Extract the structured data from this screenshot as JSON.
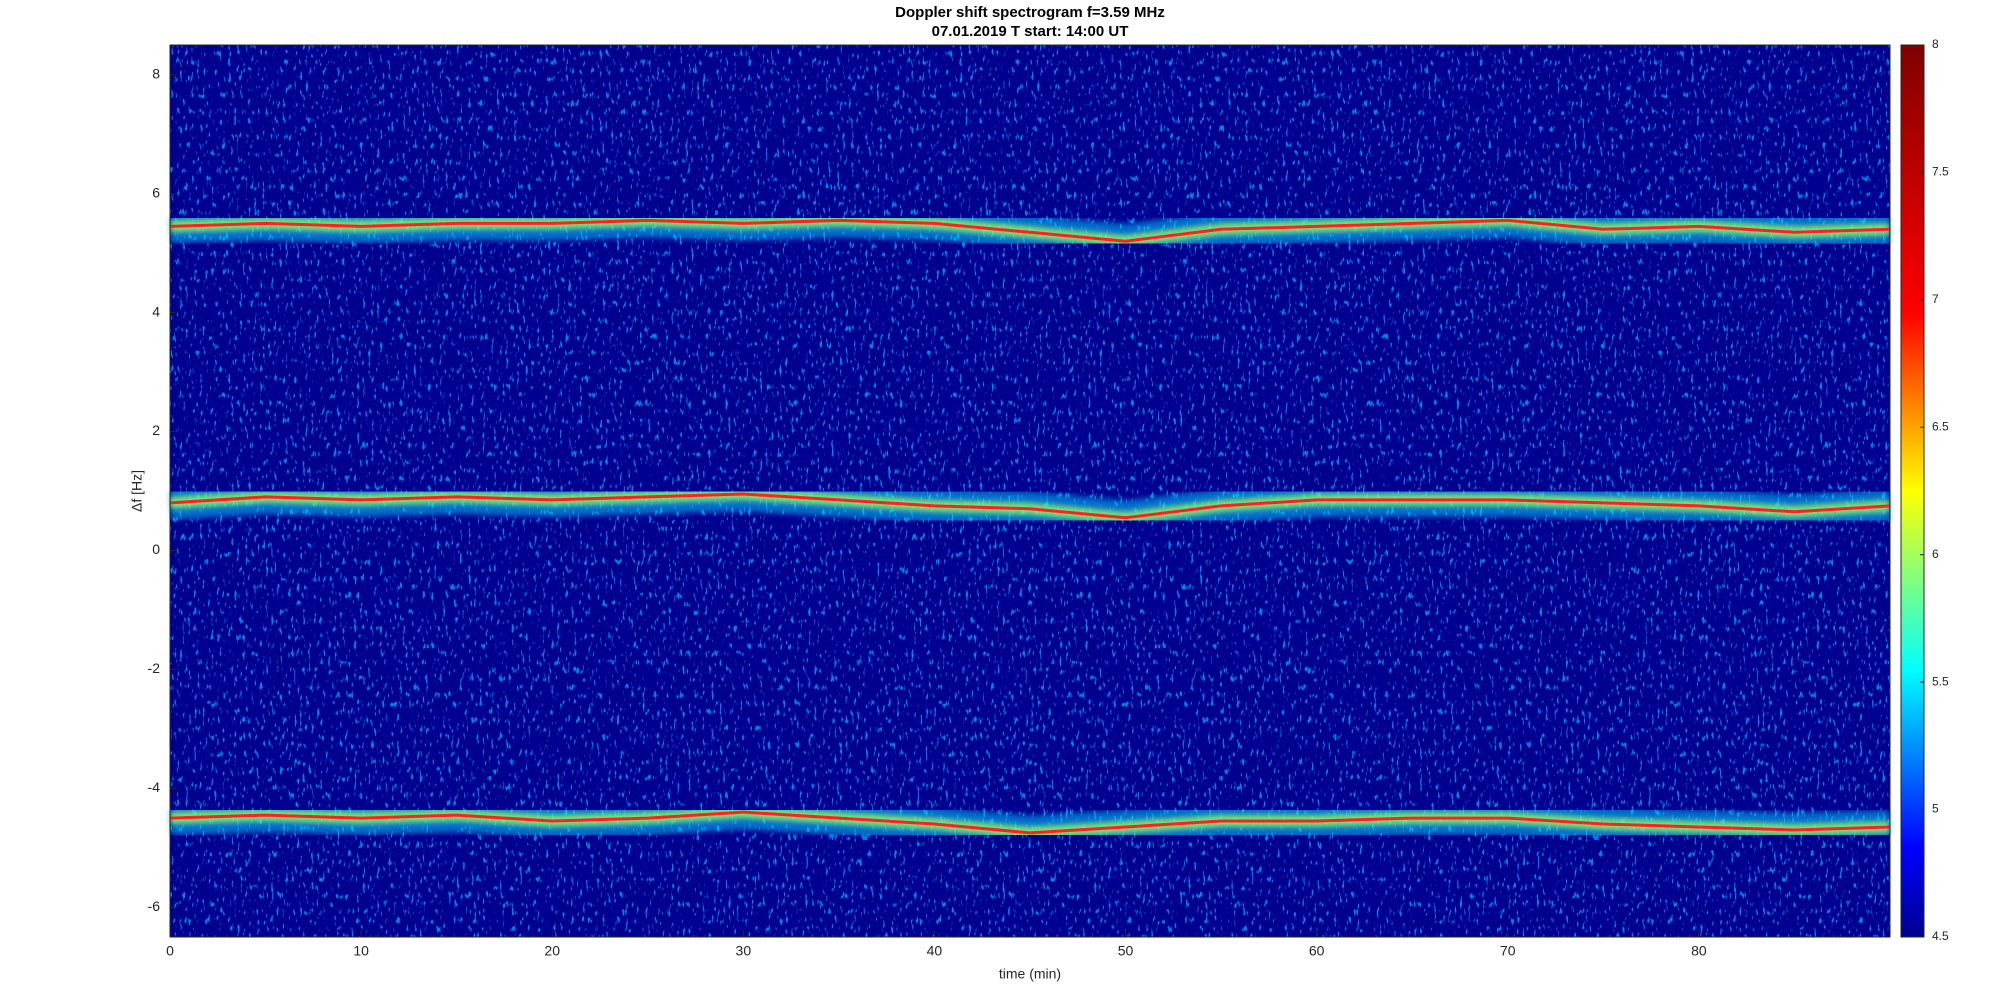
{
  "chart_data": {
    "type": "spectrogram",
    "title": "Doppler shift spectrogram f=3.59 MHz",
    "subtitle": "07.01.2019   T start: 14:00 UT",
    "x_label": "time (min)",
    "y_label": "Δf [Hz]",
    "xlim": [
      0,
      90
    ],
    "xticks": [
      0,
      10,
      20,
      30,
      40,
      50,
      60,
      70,
      80
    ],
    "ylim": [
      -6.5,
      8.5
    ],
    "yticks": [
      -6,
      -4,
      -2,
      0,
      2,
      4,
      6,
      8
    ],
    "colormap": "jet",
    "clim": [
      4.5,
      8
    ],
    "cticks": [
      4.5,
      5,
      5.5,
      6,
      6.5,
      7,
      7.5,
      8
    ],
    "x": [
      0,
      5,
      10,
      15,
      20,
      25,
      30,
      35,
      40,
      45,
      50,
      55,
      60,
      65,
      70,
      75,
      80,
      85,
      90
    ],
    "series": [
      {
        "color": "#ff2020",
        "values": [
          5.45,
          5.5,
          5.45,
          5.5,
          5.5,
          5.55,
          5.5,
          5.55,
          5.5,
          5.35,
          5.2,
          5.4,
          5.45,
          5.5,
          5.55,
          5.4,
          5.45,
          5.35,
          5.4
        ]
      },
      {
        "color": "#ff2020",
        "values": [
          0.8,
          0.9,
          0.85,
          0.9,
          0.85,
          0.9,
          0.95,
          0.85,
          0.75,
          0.7,
          0.55,
          0.75,
          0.85,
          0.85,
          0.85,
          0.8,
          0.75,
          0.65,
          0.75
        ]
      },
      {
        "color": "#ff2020",
        "values": [
          -4.5,
          -4.45,
          -4.5,
          -4.45,
          -4.55,
          -4.5,
          -4.4,
          -4.5,
          -4.6,
          -4.75,
          -4.65,
          -4.55,
          -4.55,
          -4.5,
          -4.5,
          -4.6,
          -4.65,
          -4.7,
          -4.65
        ]
      }
    ]
  }
}
